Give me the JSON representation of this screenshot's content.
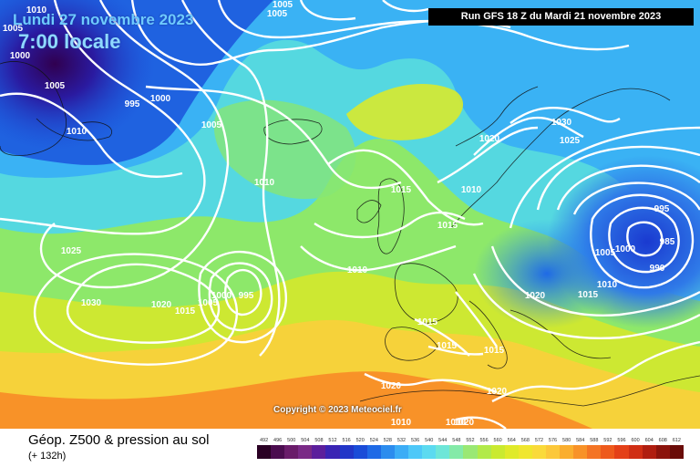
{
  "header": {
    "date_label": "Lundi 27 novembre 2023",
    "time_label": "7:00 locale",
    "run_info": "Run GFS 18 Z du Mardi 21 novembre 2023"
  },
  "copyright": "Copyright © 2023 Meteociel.fr",
  "footer": {
    "title": "Géop. Z500 & pression au sol",
    "subtitle": "(+ 132h)"
  },
  "scale": {
    "labels": [
      "492",
      "496",
      "500",
      "504",
      "508",
      "512",
      "516",
      "520",
      "524",
      "528",
      "532",
      "536",
      "540",
      "544",
      "548",
      "552",
      "556",
      "560",
      "564",
      "568",
      "572",
      "576",
      "580",
      "584",
      "588",
      "592",
      "596",
      "600",
      "604",
      "608",
      "612"
    ],
    "colors": [
      "#2a0024",
      "#4b0c4f",
      "#6a1c6a",
      "#7a2a86",
      "#5c1f9c",
      "#3a24b4",
      "#2236c8",
      "#1a4cd8",
      "#1f6ae6",
      "#2c8cee",
      "#3cadf6",
      "#4ec8f8",
      "#5cdaf0",
      "#6ee6d8",
      "#84eaa8",
      "#9ae874",
      "#b2ea4a",
      "#caea30",
      "#e0ea2a",
      "#f0e62e",
      "#fada3a",
      "#fcc83a",
      "#faae2e",
      "#f89228",
      "#f47424",
      "#ee5a1c",
      "#e44018",
      "#d02e14",
      "#b01e10",
      "#8c140c",
      "#6a0c08"
    ]
  },
  "map": {
    "pressure_labels": [
      {
        "text": "1010"
      },
      {
        "text": "1005"
      },
      {
        "text": "1005"
      },
      {
        "text": "1005"
      },
      {
        "text": "1000"
      },
      {
        "text": "1005"
      },
      {
        "text": "1010"
      },
      {
        "text": "995"
      },
      {
        "text": "1000"
      },
      {
        "text": "1005"
      },
      {
        "text": "1010"
      },
      {
        "text": "1025"
      },
      {
        "text": "1030"
      },
      {
        "text": "1020"
      },
      {
        "text": "1015"
      },
      {
        "text": "1005"
      },
      {
        "text": "1000"
      },
      {
        "text": "995"
      },
      {
        "text": "1010"
      },
      {
        "text": "1015"
      },
      {
        "text": "1015"
      },
      {
        "text": "1020"
      },
      {
        "text": "1010"
      },
      {
        "text": "1030"
      },
      {
        "text": "1025"
      },
      {
        "text": "995"
      },
      {
        "text": "985"
      },
      {
        "text": "1005"
      },
      {
        "text": "1000"
      },
      {
        "text": "990"
      },
      {
        "text": "1010"
      },
      {
        "text": "1015"
      },
      {
        "text": "1020"
      },
      {
        "text": "1015"
      },
      {
        "text": "1015"
      },
      {
        "text": "1015"
      },
      {
        "text": "1020"
      },
      {
        "text": "1020"
      },
      {
        "text": "1020"
      },
      {
        "text": "1010"
      },
      {
        "text": "1010"
      }
    ]
  }
}
